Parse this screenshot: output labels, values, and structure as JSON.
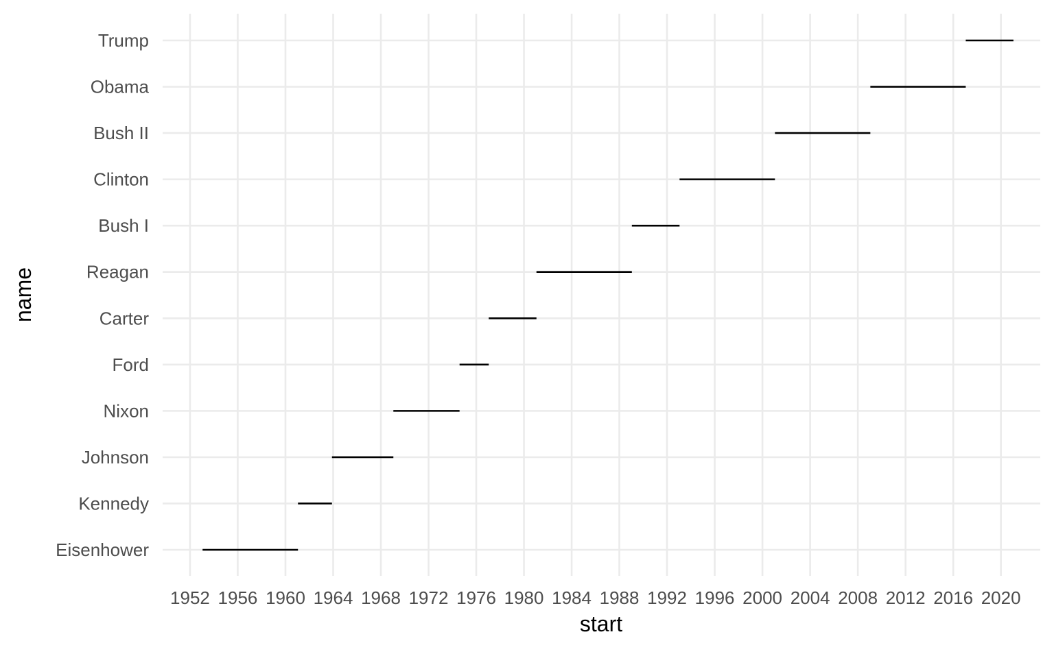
{
  "chart_data": {
    "type": "segment",
    "title": "",
    "xlabel": "start",
    "ylabel": "name",
    "xlim": [
      1949.7,
      2023.3
    ],
    "x_ticks": [
      1952,
      1956,
      1960,
      1964,
      1968,
      1972,
      1976,
      1980,
      1984,
      1988,
      1992,
      1996,
      2000,
      2004,
      2008,
      2012,
      2016,
      2020
    ],
    "x_tick_labels": [
      "1952",
      "1956",
      "1960",
      "1964",
      "1968",
      "1972",
      "1976",
      "1980",
      "1984",
      "1988",
      "1992",
      "1996",
      "2000",
      "2004",
      "2008",
      "2012",
      "2016",
      "2020"
    ],
    "grid": true,
    "legend": "none",
    "colors": {
      "background": "#ffffff",
      "grid": "#ebebeb",
      "segment": "#000000",
      "tick_text": "#4d4d4d",
      "title_text": "#000000"
    },
    "categories": [
      "Eisenhower",
      "Kennedy",
      "Johnson",
      "Nixon",
      "Ford",
      "Carter",
      "Reagan",
      "Bush I",
      "Clinton",
      "Bush II",
      "Obama",
      "Trump"
    ],
    "segments": [
      {
        "name": "Eisenhower",
        "start": 1953.05,
        "end": 1961.05
      },
      {
        "name": "Kennedy",
        "start": 1961.05,
        "end": 1963.9
      },
      {
        "name": "Johnson",
        "start": 1963.9,
        "end": 1969.05
      },
      {
        "name": "Nixon",
        "start": 1969.05,
        "end": 1974.6
      },
      {
        "name": "Ford",
        "start": 1974.6,
        "end": 1977.05
      },
      {
        "name": "Carter",
        "start": 1977.05,
        "end": 1981.05
      },
      {
        "name": "Reagan",
        "start": 1981.05,
        "end": 1989.05
      },
      {
        "name": "Bush I",
        "start": 1989.05,
        "end": 1993.05
      },
      {
        "name": "Clinton",
        "start": 1993.05,
        "end": 2001.05
      },
      {
        "name": "Bush II",
        "start": 2001.05,
        "end": 2009.05
      },
      {
        "name": "Obama",
        "start": 2009.05,
        "end": 2017.05
      },
      {
        "name": "Trump",
        "start": 2017.05,
        "end": 2021.05
      }
    ]
  }
}
